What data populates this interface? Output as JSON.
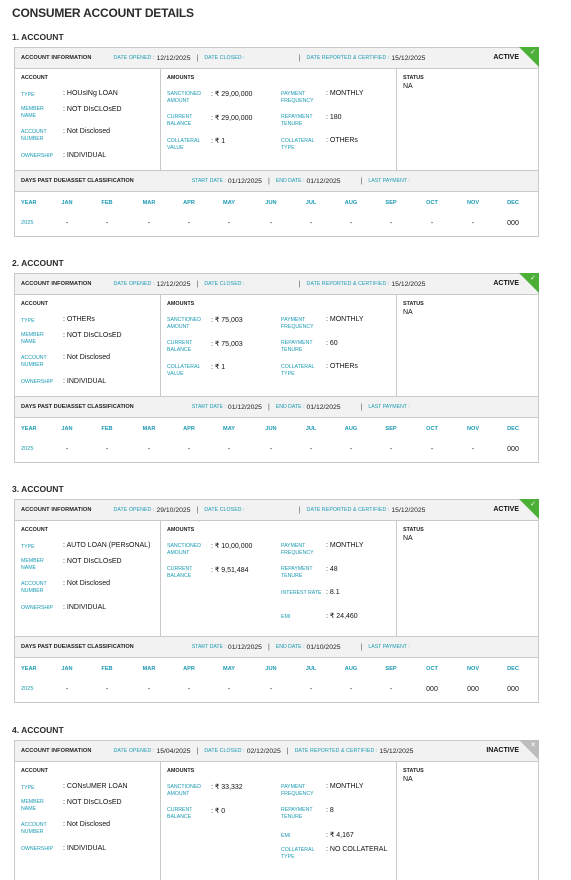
{
  "page_title": "CONSUMER ACCOUNT DETAILS",
  "labels": {
    "account_information": "ACCOUNT INFORMATION",
    "date_opened": "DATE OPENED :",
    "date_closed": "DATE CLOSED :",
    "date_reported": "DATE REPORTED & CERTIFIED :",
    "account": "ACCOUNT",
    "amounts": "AMOUNTS",
    "status": "STATUS",
    "type": "TYPE",
    "member_name": "MEMBER NAME",
    "account_number": "ACCOUNT NUMBER",
    "ownership": "OWNERSHIP",
    "sanctioned_amount": "SANCTIONED AMOUNT",
    "current_balance": "CURRENT BALANCE",
    "collateral_value": "COLLATERAL VALUE",
    "payment_frequency": "PAYMENT FREQUENCY",
    "repayment_tenure": "REPAYMENT TENURE",
    "collateral_type": "COLLATERAL TYPE",
    "interest_rate": "INTEREST RATE",
    "emi": "EMI",
    "dpd": "DAYS PAST DUE/ASSET CLASSIFICATION",
    "start_date": "START DATE :",
    "end_date": "END DATE :",
    "last_payment": "LAST PAYMENT :",
    "months": [
      "YEAR",
      "JAN",
      "FEB",
      "MAR",
      "APR",
      "MAY",
      "JUN",
      "JUL",
      "AUG",
      "SEP",
      "OCT",
      "NOV",
      "DEC"
    ]
  },
  "accounts": [
    {
      "heading": "1. ACCOUNT",
      "date_opened": "12/12/2025",
      "date_closed": "",
      "date_reported": "15/12/2025",
      "status": "ACTIVE",
      "type": "HOUsINg LOAN",
      "member_name": "NOT DIsCLOsED",
      "account_number": "Not Disclosed",
      "ownership": "INDIVIDUAL",
      "sanctioned_amount": "₹ 29,00,000",
      "current_balance": "₹ 29,00,000",
      "collateral_value": "₹ 1",
      "payment_frequency": "MONTHLY",
      "repayment_tenure": "180",
      "collateral_type": "OTHERs",
      "status_value": "NA",
      "start_date": "01/12/2025",
      "end_date": "01/12/2025",
      "last_payment": "",
      "dpd_row": [
        "2025",
        "-",
        "-",
        "-",
        "-",
        "-",
        "-",
        "-",
        "-",
        "-",
        "-",
        "-",
        "000"
      ]
    },
    {
      "heading": "2. ACCOUNT",
      "date_opened": "12/12/2025",
      "date_closed": "",
      "date_reported": "15/12/2025",
      "status": "ACTIVE",
      "type": "OTHERs",
      "member_name": "NOT DIsCLOsED",
      "account_number": "Not Disclosed",
      "ownership": "INDIVIDUAL",
      "sanctioned_amount": "₹ 75,003",
      "current_balance": "₹ 75,003",
      "collateral_value": "₹ 1",
      "payment_frequency": "MONTHLY",
      "repayment_tenure": "60",
      "collateral_type": "OTHERs",
      "status_value": "NA",
      "start_date": "01/12/2025",
      "end_date": "01/12/2025",
      "last_payment": "",
      "dpd_row": [
        "2025",
        "-",
        "-",
        "-",
        "-",
        "-",
        "-",
        "-",
        "-",
        "-",
        "-",
        "-",
        "000"
      ]
    },
    {
      "heading": "3. ACCOUNT",
      "date_opened": "29/10/2025",
      "date_closed": "",
      "date_reported": "15/12/2025",
      "status": "ACTIVE",
      "type": "AUTO LOAN (PERsONAL)",
      "member_name": "NOT DIsCLOsED",
      "account_number": "Not Disclosed",
      "ownership": "INDIVIDUAL",
      "sanctioned_amount": "₹ 10,00,000",
      "current_balance": "₹ 9,51,484",
      "payment_frequency": "MONTHLY",
      "repayment_tenure": "48",
      "interest_rate": "8.1",
      "emi": "₹ 24,460",
      "status_value": "NA",
      "start_date": "01/12/2025",
      "end_date": "01/10/2025",
      "last_payment": "",
      "dpd_row": [
        "2025",
        "-",
        "-",
        "-",
        "-",
        "-",
        "-",
        "-",
        "-",
        "-",
        "000",
        "000",
        "000"
      ]
    },
    {
      "heading": "4. ACCOUNT",
      "date_opened": "15/04/2025",
      "date_closed": "02/12/2025",
      "date_reported": "15/12/2025",
      "status": "INACTIVE",
      "type": "CONsUMER LOAN",
      "member_name": "NOT DIsCLOsED",
      "account_number": "Not Disclosed",
      "ownership": "INDIVIDUAL",
      "sanctioned_amount": "₹ 33,332",
      "current_balance": "₹ 0",
      "payment_frequency": "MONTHLY",
      "repayment_tenure": "8",
      "emi": "₹ 4,167",
      "collateral_type": "NO COLLATERAL",
      "status_value": "NA"
    }
  ],
  "colors": {
    "accent": "#1a9ab3",
    "active": "#4caf38",
    "inactive": "#bdbdbd"
  }
}
